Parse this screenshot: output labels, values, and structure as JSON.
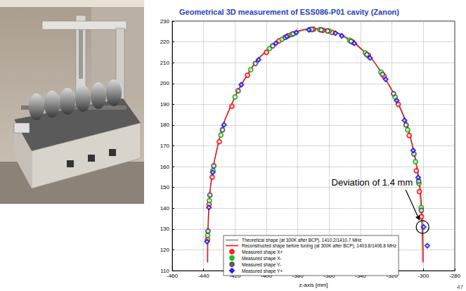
{
  "chart_data": {
    "type": "scatter",
    "title": "Geometrical 3D measurement of ESS086-P01 cavity (Zanon)",
    "x_label": "z-axis [mm]",
    "xlim": [
      -460,
      -280
    ],
    "xticks": [
      -460,
      -440,
      -420,
      -400,
      -380,
      -360,
      -340,
      -320,
      -300,
      -280
    ],
    "ylim": [
      110,
      230
    ],
    "yticks": [
      110,
      120,
      130,
      140,
      150,
      160,
      170,
      180,
      190,
      200,
      210,
      220,
      230
    ],
    "grid": true,
    "legend": "lower left",
    "series": [
      {
        "name": "Theoretical shape (at 300K after BCP), 1410.2/1410.7 MHz",
        "type": "line",
        "line_style": "solid",
        "color": "#808080",
        "x": [
          -437.3,
          -437,
          -436,
          -435,
          -431,
          -424,
          -409,
          -399,
          -389,
          -379,
          -369,
          -359,
          -349,
          -339,
          -329,
          -314,
          -307,
          -303,
          -302,
          -301,
          -300.7
        ],
        "values": [
          114,
          130,
          145,
          153,
          169.5,
          186.5,
          207.6,
          216,
          221.7,
          225,
          226,
          225,
          221.7,
          216,
          207.6,
          186.5,
          169.5,
          153,
          145,
          130,
          114
        ]
      },
      {
        "name": "Reconstructed shape before tuning (at 300K after BCP), 1403.8/1406.8 MHz",
        "type": "line",
        "line_style": "solid",
        "color": "#ff0000",
        "x": [
          -437.6,
          -437.3,
          -436.3,
          -435.2,
          -431.2,
          -424.1,
          -409,
          -399,
          -389,
          -379,
          -369,
          -359,
          -349,
          -339,
          -329,
          -313.8,
          -306.7,
          -302.6,
          -301.5,
          -300.4,
          -300
        ],
        "values": [
          114,
          130,
          145,
          153,
          169.6,
          186.8,
          208,
          216.4,
          222.1,
          225.4,
          226.4,
          225.4,
          222.1,
          216.3,
          207.9,
          186.8,
          169.7,
          153,
          145,
          130,
          114
        ]
      },
      {
        "name": "Measured shape X+",
        "type": "scatter",
        "marker": "circle",
        "color": "#ff0000",
        "x": [
          -437.5,
          -436.5,
          -434.5,
          -430,
          -422,
          -412,
          -400,
          -392,
          -386,
          -370,
          -364,
          -358,
          -345,
          -335,
          -325,
          -316,
          -309,
          -304.5,
          -302.5,
          -301.2
        ],
        "values": [
          125,
          142,
          155,
          172,
          189,
          204,
          215,
          220.5,
          223,
          226.1,
          225.6,
          224.5,
          219.9,
          213.5,
          203.5,
          190,
          175,
          158,
          148,
          136
        ]
      },
      {
        "name": "Measured shape X-",
        "type": "scatter",
        "marker": "circle",
        "color": "#00b000",
        "x": [
          -437.4,
          -436.3,
          -434,
          -429,
          -420,
          -410,
          -398,
          -390,
          -384,
          -372,
          -366,
          -360,
          -347,
          -337,
          -327,
          -318,
          -310,
          -305,
          -302.8,
          -301.4
        ],
        "values": [
          127,
          143.7,
          158.2,
          175.2,
          193.5,
          206.6,
          216.8,
          221.3,
          223.6,
          225.9,
          225.9,
          225.2,
          220.8,
          214.7,
          205.5,
          193.5,
          177.7,
          162.4,
          151.9,
          140.4
        ]
      },
      {
        "name": "Measured shape Y-",
        "type": "scatter",
        "marker": "circle",
        "color": "#404040",
        "x": [
          -437.2,
          -436,
          -433.5,
          -428,
          -418,
          -407,
          -396,
          -388,
          -383,
          -371,
          -365,
          -361,
          -346,
          -336,
          -326,
          -319,
          -311,
          -306,
          -303,
          -301.3
        ],
        "values": [
          129,
          146.4,
          160.4,
          177.7,
          196.5,
          209.6,
          218.1,
          222.2,
          223.9,
          226,
          225.8,
          225.3,
          220.3,
          213.9,
          204.4,
          195.1,
          180.1,
          166.1,
          153.1,
          139
        ]
      },
      {
        "name": "Measured shape Y+",
        "type": "scatter",
        "marker": "diamond",
        "color": "#0000ff",
        "x": [
          -437.8,
          -436.6,
          -434.2,
          -427,
          -416,
          -405,
          -394,
          -387,
          -381,
          -373,
          -356,
          -352,
          -344,
          -334,
          -324,
          -317,
          -312,
          -306.5,
          -303.3,
          -299.8,
          -297.5
        ],
        "values": [
          124,
          140.4,
          157.3,
          180.1,
          199.4,
          211.4,
          219.3,
          222.6,
          224.5,
          225.8,
          224.2,
          222.9,
          219.3,
          212.3,
          202,
          191.8,
          182.3,
          167.8,
          154.8,
          131,
          122
        ]
      }
    ],
    "annotation": {
      "text": "Deviation of 1.4 mm",
      "x": -300.5,
      "y": 131
    }
  },
  "page_number": "47"
}
